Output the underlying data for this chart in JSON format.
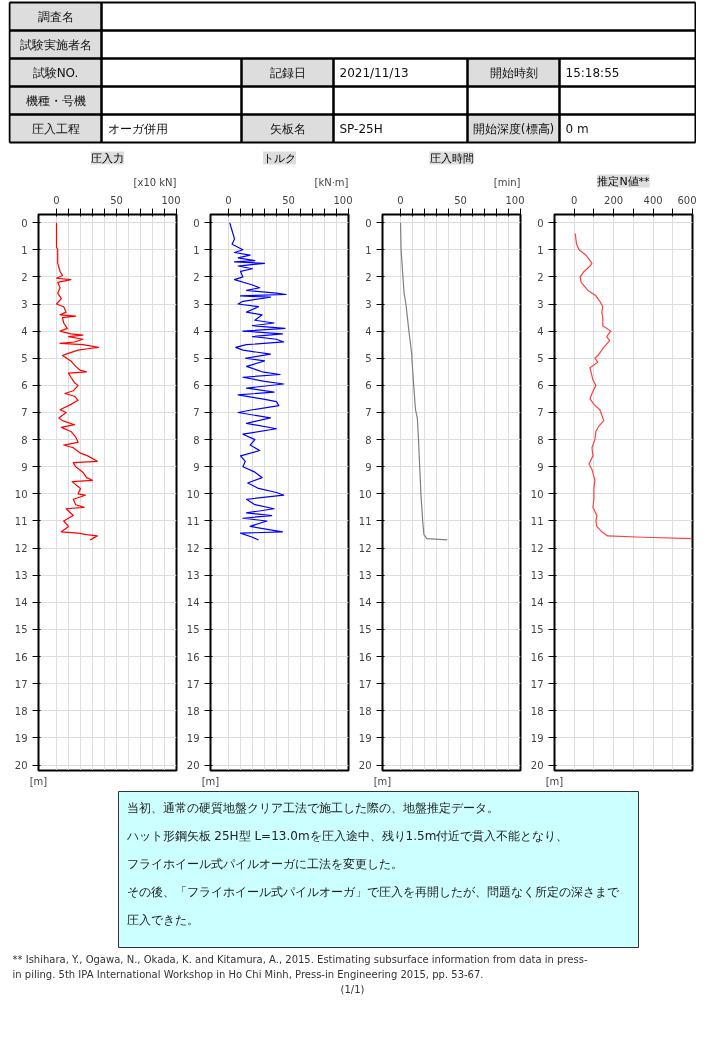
{
  "chart_data": [
    {
      "type": "other",
      "annotations": [
        "調査名",
        null,
        "試験実施者名",
        null,
        "試験NO.",
        null,
        "記録日",
        "2021/11/13",
        "開始時刻",
        "15:18:55",
        "機種・号機",
        null,
        null,
        null,
        null,
        null,
        "圧入工程",
        "オーガ併用",
        "矢板名",
        "SP-25H",
        "開始深度(標高)",
        "0 m"
      ]
    },
    {
      "type": "line",
      "orientation": "horizontal",
      "title": "圧入力",
      "xlabel": "[x10 kN]",
      "annotations": [
        "[m]"
      ],
      "xlim": [
        -15,
        100
      ],
      "xticks": [
        0,
        {
          "value": 10,
          "label": null
        },
        {
          "value": 20,
          "label": null
        },
        {
          "value": 30,
          "label": null
        },
        {
          "value": 40,
          "label": null
        },
        50,
        {
          "value": 60,
          "label": null
        },
        {
          "value": 70,
          "label": null
        },
        {
          "value": 80,
          "label": null
        },
        {
          "value": 90,
          "label": null
        },
        100
      ],
      "ylim": [
        20.2,
        -0.3
      ],
      "yticks": [
        0,
        1,
        2,
        3,
        4,
        5,
        6,
        7,
        8,
        9,
        10,
        11,
        12,
        13,
        14,
        15,
        16,
        17,
        18,
        19,
        20
      ],
      "grid": true,
      "series": [
        {
          "color": "#ff0000",
          "values": [
            0,
            0,
            0,
            1,
            1,
            3,
            5,
            0,
            12,
            1,
            3,
            1,
            4,
            0,
            6,
            8,
            3,
            16,
            5,
            6,
            9,
            3,
            12,
            22,
            10,
            22,
            15,
            3,
            22,
            35,
            26,
            18,
            8,
            5,
            12,
            16,
            20,
            25,
            10,
            12,
            15,
            18,
            14,
            7,
            15,
            18,
            12,
            3,
            8,
            2,
            5,
            15,
            4,
            12,
            16,
            18,
            6,
            14,
            20,
            26,
            34,
            14,
            16,
            22,
            25,
            30,
            13,
            20,
            18,
            24,
            14,
            16,
            23,
            8,
            14,
            6,
            10,
            4,
            18,
            25,
            34,
            30,
            28
          ],
          "x": [
            0.0,
            0.5,
            0.9,
            1.0,
            1.5,
            1.8,
            1.95,
            2.05,
            2.1,
            2.2,
            2.4,
            2.6,
            2.8,
            3.0,
            3.1,
            3.3,
            3.4,
            3.45,
            3.5,
            3.7,
            3.9,
            4.0,
            4.1,
            4.15,
            4.2,
            4.3,
            4.4,
            4.45,
            4.5,
            4.6,
            4.65,
            4.7,
            4.85,
            4.9,
            5.1,
            5.3,
            5.45,
            5.5,
            5.55,
            5.7,
            5.9,
            6.0,
            6.2,
            6.3,
            6.4,
            6.55,
            6.7,
            6.9,
            7.0,
            7.2,
            7.3,
            7.45,
            7.55,
            7.7,
            7.9,
            8.1,
            8.2,
            8.3,
            8.5,
            8.6,
            8.8,
            8.85,
            9.0,
            9.2,
            9.4,
            9.5,
            9.55,
            9.8,
            10.0,
            10.05,
            10.2,
            10.4,
            10.5,
            10.55,
            10.8,
            11.0,
            11.2,
            11.4,
            11.45,
            11.5,
            11.55,
            11.65,
            11.7
          ]
        }
      ]
    },
    {
      "type": "line",
      "orientation": "horizontal",
      "title": "トルク",
      "xlabel": "[kN·m]",
      "annotations": [
        "[m]"
      ],
      "xlim": [
        -15,
        100
      ],
      "xticks": [
        0,
        {
          "value": 10,
          "label": null
        },
        {
          "value": 20,
          "label": null
        },
        {
          "value": 30,
          "label": null
        },
        {
          "value": 40,
          "label": null
        },
        50,
        {
          "value": 60,
          "label": null
        },
        {
          "value": 70,
          "label": null
        },
        {
          "value": 80,
          "label": null
        },
        {
          "value": 90,
          "label": null
        },
        100
      ],
      "ylim": [
        20.2,
        -0.3
      ],
      "yticks": [
        0,
        1,
        2,
        3,
        4,
        5,
        6,
        7,
        8,
        9,
        10,
        11,
        12,
        13,
        14,
        15,
        16,
        17,
        18,
        19,
        20
      ],
      "grid": true,
      "series": [
        {
          "color": "#0000ff",
          "values": [
            1,
            3,
            5,
            3,
            12,
            5,
            18,
            8,
            22,
            5,
            30,
            8,
            20,
            10,
            12,
            5,
            20,
            26,
            15,
            40,
            48,
            10,
            35,
            12,
            8,
            25,
            15,
            28,
            22,
            38,
            20,
            47,
            12,
            45,
            20,
            40,
            46,
            15,
            6,
            12,
            35,
            14,
            30,
            15,
            28,
            43,
            12,
            30,
            46,
            15,
            38,
            8,
            28,
            40,
            42,
            20,
            8,
            35,
            15,
            40,
            12,
            22,
            18,
            26,
            10,
            14,
            12,
            22,
            28,
            16,
            25,
            40,
            46,
            15,
            22,
            38,
            15,
            36,
            12,
            32,
            18,
            45,
            10,
            20,
            25
          ],
          "x": [
            0.0,
            0.3,
            0.6,
            0.8,
            1.0,
            1.1,
            1.2,
            1.3,
            1.4,
            1.45,
            1.5,
            1.6,
            1.7,
            1.8,
            2.0,
            2.1,
            2.3,
            2.4,
            2.5,
            2.6,
            2.65,
            2.7,
            2.75,
            2.9,
            3.0,
            3.1,
            3.3,
            3.4,
            3.6,
            3.7,
            3.8,
            3.9,
            4.0,
            4.1,
            4.2,
            4.3,
            4.4,
            4.5,
            4.6,
            4.7,
            4.85,
            5.0,
            5.1,
            5.3,
            5.5,
            5.6,
            5.7,
            5.85,
            5.95,
            6.1,
            6.25,
            6.35,
            6.5,
            6.6,
            6.75,
            6.9,
            7.0,
            7.2,
            7.4,
            7.6,
            7.8,
            8.0,
            8.2,
            8.4,
            8.6,
            8.8,
            9.0,
            9.2,
            9.4,
            9.6,
            9.8,
            9.95,
            10.05,
            10.2,
            10.4,
            10.55,
            10.7,
            10.8,
            10.9,
            11.0,
            11.2,
            11.4,
            11.45,
            11.6,
            11.7
          ]
        }
      ]
    },
    {
      "type": "line",
      "orientation": "horizontal",
      "title": "圧入時間",
      "xlabel": "[min]",
      "annotations": [
        "[m]"
      ],
      "xlim": [
        -15,
        100
      ],
      "xticks": [
        0,
        {
          "value": 10,
          "label": null
        },
        {
          "value": 20,
          "label": null
        },
        {
          "value": 30,
          "label": null
        },
        {
          "value": 40,
          "label": null
        },
        50,
        {
          "value": 60,
          "label": null
        },
        {
          "value": 70,
          "label": null
        },
        {
          "value": 80,
          "label": null
        },
        {
          "value": 90,
          "label": null
        },
        100
      ],
      "ylim": [
        20.2,
        -0.3
      ],
      "yticks": [
        0,
        1,
        2,
        3,
        4,
        5,
        6,
        7,
        8,
        9,
        10,
        11,
        12,
        13,
        14,
        15,
        16,
        17,
        18,
        19,
        20
      ],
      "grid": true,
      "series": [
        {
          "color": "#808080",
          "values": [
            0,
            0.5,
            2,
            3,
            4.5,
            7,
            9.5,
            9.5,
            11,
            12.5,
            14,
            15,
            16,
            17,
            18.5,
            19.5,
            22,
            39
          ],
          "x": [
            0,
            1,
            2,
            2.6,
            3,
            4,
            4.9,
            5.0,
            6,
            6.9,
            7.2,
            8,
            9,
            10,
            11,
            11.5,
            11.65,
            11.7
          ]
        }
      ]
    },
    {
      "type": "line",
      "orientation": "horizontal",
      "title": "推定N値**",
      "annotations": [
        "[m]"
      ],
      "xlim": [
        -100,
        600
      ],
      "xticks": [
        0,
        {
          "value": 100,
          "label": null
        },
        200,
        {
          "value": 300,
          "label": null
        },
        400,
        {
          "value": 500,
          "label": null
        },
        600
      ],
      "ylim": [
        20.2,
        -0.3
      ],
      "yticks": [
        0,
        1,
        2,
        3,
        4,
        5,
        6,
        7,
        8,
        9,
        10,
        11,
        12,
        13,
        14,
        15,
        16,
        17,
        18,
        19,
        20
      ],
      "grid": true,
      "series": [
        {
          "color": "#ff4040",
          "values": [
            5,
            12,
            25,
            60,
            90,
            80,
            50,
            30,
            35,
            70,
            110,
            130,
            145,
            140,
            145,
            145,
            185,
            165,
            180,
            150,
            120,
            105,
            120,
            80,
            85,
            95,
            110,
            90,
            80,
            100,
            130,
            140,
            150,
            125,
            110,
            105,
            90,
            95,
            75,
            90,
            105,
            100,
            100,
            95,
            115,
            110,
            115,
            140,
            170,
            350,
            600
          ],
          "x": [
            0.4,
            0.8,
            1.0,
            1.2,
            1.5,
            1.6,
            1.8,
            2.0,
            2.2,
            2.5,
            2.7,
            2.9,
            3.1,
            3.3,
            3.5,
            3.8,
            4.0,
            4.2,
            4.35,
            4.6,
            4.9,
            5.0,
            5.15,
            5.35,
            5.5,
            5.8,
            6.0,
            6.3,
            6.5,
            6.7,
            6.9,
            7.1,
            7.3,
            7.5,
            7.7,
            8.0,
            8.3,
            8.6,
            8.9,
            9.1,
            9.5,
            9.8,
            10.2,
            10.5,
            10.8,
            11.0,
            11.2,
            11.4,
            11.55,
            11.6,
            11.65
          ]
        }
      ]
    },
    {
      "type": "other",
      "annotations": [
        "当初、通常の硬質地盤クリア工法で施工した際の、地盤推定データ。",
        "ハット形鋼矢板 25H型 L=13.0mを圧入途中、残り1.5m付近で貫入不能となり、",
        "フライホイール式パイルオーガに工法を変更した。",
        "その後、「フライホイール式パイルオーガ」で圧入を再開したが、問題なく所定の深さまで",
        "圧入できた。"
      ]
    },
    {
      "type": "other",
      "annotations": [
        "** Ishihara, Y., Ogawa, N., Okada, K. and Kitamura, A., 2015. Estimating subsurface information from data in press-in piling. 5th IPA International Workshop in Ho Chi Minh, Press-in Engineering 2015, pp. 53-67.",
        "(1/1)"
      ]
    }
  ]
}
